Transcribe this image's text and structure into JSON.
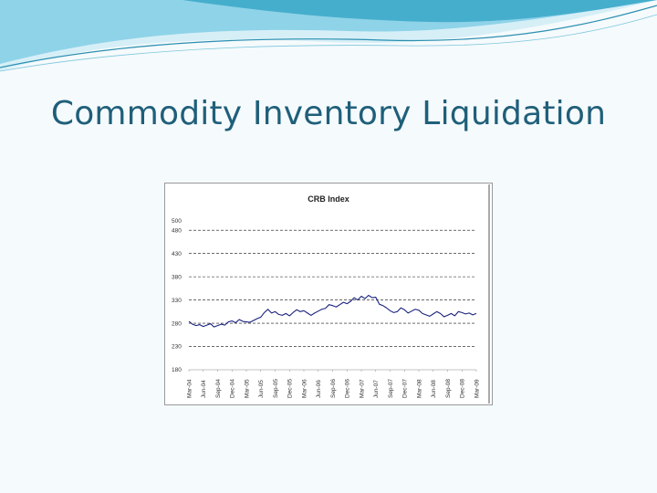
{
  "slide": {
    "title": "Commodity Inventory Liquidation",
    "theme_colors": {
      "title": "#1f5f7a",
      "swoosh_dark": "#3aa7c8",
      "swoosh_light": "#bfe6f2",
      "background": "#f5fafc"
    }
  },
  "chart_data": {
    "type": "line",
    "title": "CRB Index",
    "xlabel": "",
    "ylabel": "",
    "ylim": [
      180,
      500
    ],
    "yticks": [
      500,
      480,
      430,
      380,
      330,
      280,
      230,
      180
    ],
    "ytick_labels": [
      "500",
      "480",
      "430",
      "380",
      "330",
      "280",
      "230",
      "180"
    ],
    "xticks": [
      "Mar-04",
      "Jun-04",
      "Sep-04",
      "Dec-04",
      "Mar-05",
      "Jun-05",
      "Sep-05",
      "Dec-05",
      "Mar-06",
      "Jun-06",
      "Sep-06",
      "Dec-06",
      "Mar-07",
      "Jun-07",
      "Sep-07",
      "Dec-07",
      "Mar-08",
      "Jun-08",
      "Sep-08",
      "Dec-08",
      "Mar-09"
    ],
    "grid": "horizontal-dashed",
    "line_color": "#1a237e",
    "series": [
      {
        "name": "",
        "x": [
          0,
          0.25,
          0.5,
          0.75,
          1,
          1.25,
          1.5,
          1.75,
          2,
          2.25,
          2.5,
          2.75,
          3,
          3.25,
          3.5,
          3.75,
          4,
          4.25,
          4.5,
          4.75,
          5,
          5.25,
          5.5,
          5.75,
          6,
          6.25,
          6.5,
          6.75,
          7,
          7.25,
          7.5,
          7.75,
          8,
          8.25,
          8.5,
          8.75,
          9,
          9.25,
          9.5,
          9.75,
          10,
          10.25,
          10.5,
          10.75,
          11,
          11.25,
          11.5,
          11.75,
          12,
          12.25,
          12.5,
          12.75,
          13,
          13.25,
          13.5,
          13.75,
          14,
          14.25,
          14.5,
          14.75,
          15,
          15.25,
          15.5,
          15.75,
          16,
          16.25,
          16.5,
          16.75,
          17,
          17.25,
          17.5,
          17.75,
          18,
          18.25,
          18.5,
          18.75,
          19,
          19.25,
          19.5,
          19.75,
          20
        ],
        "values": [
          284,
          278,
          275,
          277,
          273,
          276,
          279,
          272,
          275,
          278,
          276,
          283,
          285,
          281,
          288,
          284,
          283,
          282,
          286,
          290,
          293,
          303,
          310,
          302,
          305,
          299,
          297,
          301,
          296,
          303,
          309,
          305,
          307,
          302,
          297,
          302,
          306,
          310,
          312,
          320,
          318,
          315,
          320,
          325,
          322,
          327,
          335,
          330,
          338,
          333,
          340,
          335,
          336,
          321,
          318,
          313,
          307,
          303,
          305,
          313,
          309,
          302,
          306,
          310,
          308,
          301,
          298,
          295,
          300,
          305,
          301,
          294,
          297,
          301,
          296,
          305,
          303,
          300,
          302,
          298,
          301
        ]
      }
    ]
  }
}
